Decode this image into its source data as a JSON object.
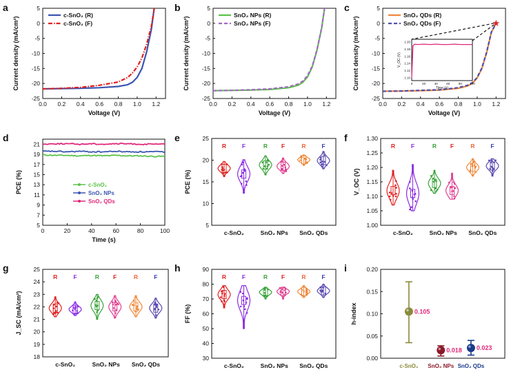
{
  "figure": {
    "panels": [
      {
        "id": "a",
        "letter": "a",
        "kind": "jv",
        "xlabel": "Voltage (V)",
        "ylabel": "Current density (mA/cm²)",
        "xlim": [
          0,
          1.3
        ],
        "ylim": [
          -25,
          5
        ],
        "xticks": [
          "0.0",
          "0.2",
          "0.4",
          "0.6",
          "0.8",
          "1.0",
          "1.2"
        ],
        "yticks": [
          "5",
          "0",
          "-5",
          "-10",
          "-15",
          "-20",
          "-25"
        ],
        "legend": [
          {
            "label": "c-SnO₂ (R)",
            "color": "#3a56b0",
            "dash": "solid"
          },
          {
            "label": "c-SnO₂ (F)",
            "color": "#e02020",
            "dash": "dashdot"
          }
        ]
      },
      {
        "id": "b",
        "letter": "b",
        "kind": "jv",
        "xlabel": "Voltage (V)",
        "ylabel": "Current density (mA/cm²)",
        "xlim": [
          0,
          1.3
        ],
        "ylim": [
          -25,
          5
        ],
        "xticks": [
          "0.0",
          "0.2",
          "0.4",
          "0.6",
          "0.8",
          "1.0",
          "1.2"
        ],
        "yticks": [
          "5",
          "0",
          "-5",
          "-10",
          "-15",
          "-20",
          "-25"
        ],
        "legend": [
          {
            "label": "SnO₂ NPs (R)",
            "color": "#5cc14a",
            "dash": "solid"
          },
          {
            "label": "SnO₂ NPs (F)",
            "color": "#a566c8",
            "dash": "dash"
          }
        ]
      },
      {
        "id": "c",
        "letter": "c",
        "kind": "jv",
        "xlabel": "Voltage (V)",
        "ylabel": "Current density (mA/cm²)",
        "xlim": [
          0,
          1.3
        ],
        "ylim": [
          -25,
          5
        ],
        "xticks": [
          "0.0",
          "0.2",
          "0.4",
          "0.6",
          "0.8",
          "1.0",
          "1.2"
        ],
        "yticks": [
          "5",
          "0",
          "-5",
          "-10",
          "-15",
          "-20",
          "-25"
        ],
        "legend": [
          {
            "label": "SnO₂ QDs (R)",
            "color": "#f0883a",
            "dash": "solid"
          },
          {
            "label": "SnO₂ QDs (F)",
            "color": "#4b4fb0",
            "dash": "dash"
          }
        ],
        "inset": {
          "xlabel": "Time (s)",
          "ylabel": "V_OC (V)",
          "xticks": [
            "0",
            "20",
            "40",
            "60",
            "80",
            "100"
          ],
          "yticks": [
            "1.20",
            "1.18",
            "1.16",
            "1.14",
            "1.12",
            "1.10"
          ],
          "color": "#e0287a"
        }
      },
      {
        "id": "d",
        "letter": "d",
        "kind": "pce_time",
        "xlabel": "Time (s)",
        "ylabel": "PCE (%)",
        "xticks": [
          "0",
          "20",
          "40",
          "60",
          "80",
          "100"
        ],
        "yticks": [
          "21",
          "19",
          "17",
          "15",
          "13",
          "11",
          "9",
          "7",
          "5"
        ],
        "legend": [
          {
            "label": "c-SnO₂",
            "color": "#5cc14a"
          },
          {
            "label": "SnO₂ NPs",
            "color": "#3a56b0"
          },
          {
            "label": "SnO₂ QDs",
            "color": "#e0287a"
          }
        ]
      },
      {
        "id": "e",
        "letter": "e",
        "kind": "violin",
        "ylabel": "PCE (%)",
        "yticks": [
          "25",
          "20",
          "15",
          "10",
          "5"
        ],
        "groups": [
          "c-SnO₂",
          "SnO₂ NPs",
          "SnO₂ QDs"
        ]
      },
      {
        "id": "f",
        "letter": "f",
        "kind": "violin",
        "ylabel": "V_OC (V)",
        "yticks": [
          "1.30",
          "1.25",
          "1.20",
          "1.15",
          "1.10",
          "1.05",
          "1.00"
        ],
        "groups": [
          "c-SnO₂",
          "SnO₂ NPs",
          "SnO₂ QDs"
        ]
      },
      {
        "id": "g",
        "letter": "g",
        "kind": "violin",
        "ylabel": "J_SC (mA/cm²)",
        "yticks": [
          "25",
          "24",
          "23",
          "22",
          "21",
          "20",
          "19",
          "18"
        ],
        "groups": [
          "c-SnO₂",
          "SnO₂ NPs",
          "SnO₂ QDs"
        ]
      },
      {
        "id": "h",
        "letter": "h",
        "kind": "violin",
        "ylabel": "FF (%)",
        "yticks": [
          "90",
          "80",
          "70",
          "60",
          "50",
          "40",
          "30"
        ],
        "groups": [
          "c-SnO₂",
          "SnO₂ NPs",
          "SnO₂ QDs"
        ]
      },
      {
        "id": "i",
        "letter": "i",
        "kind": "hindex",
        "ylabel": "h-index",
        "yticks": [
          "0.20",
          "0.15",
          "0.10",
          "0.05",
          "0.00"
        ],
        "categories": [
          {
            "label": "c-SnO₂",
            "color": "#8a8a3a"
          },
          {
            "label": "SnO₂ NPs",
            "color": "#8a1a2a"
          },
          {
            "label": "SnO₂ QDs",
            "color": "#1a3a8a"
          }
        ],
        "value_labels": [
          "0.105",
          "0.018",
          "0.023"
        ]
      }
    ],
    "rf_letters": [
      "R",
      "F"
    ],
    "rf_colors": [
      {
        "R": "#e02020",
        "F": "#8a2be2"
      },
      {
        "R": "#3aa33a",
        "F": "#e02020"
      },
      {
        "R": "#f0663a",
        "F": "#3a3ab0"
      }
    ],
    "violin_colors": [
      {
        "R": "#e02020",
        "F": "#8a2be2"
      },
      {
        "R": "#3aa33a",
        "F": "#e04090"
      },
      {
        "R": "#f0883a",
        "F": "#5a4ab0"
      }
    ]
  },
  "chart_data": [
    {
      "type": "line",
      "panel": "a",
      "xlabel": "Voltage (V)",
      "ylabel": "Current density (mA/cm²)",
      "xlim": [
        0,
        1.3
      ],
      "ylim": [
        -25,
        5
      ],
      "series": [
        {
          "name": "c-SnO₂ (R)",
          "x": [
            0,
            0.2,
            0.4,
            0.6,
            0.8,
            0.9,
            0.95,
            1.0,
            1.05,
            1.1,
            1.15,
            1.18
          ],
          "y": [
            -21.8,
            -21.7,
            -21.6,
            -21.4,
            -21,
            -20.4,
            -19.6,
            -18,
            -15,
            -9.5,
            -2,
            5
          ]
        },
        {
          "name": "c-SnO₂ (F)",
          "x": [
            0,
            0.2,
            0.4,
            0.6,
            0.8,
            0.9,
            0.95,
            1.0,
            1.05,
            1.1,
            1.15,
            1.18
          ],
          "y": [
            -21.8,
            -21.6,
            -21.3,
            -20.6,
            -19.5,
            -18,
            -16.5,
            -14.5,
            -11.5,
            -7,
            -1,
            5
          ]
        }
      ]
    },
    {
      "type": "line",
      "panel": "b",
      "xlabel": "Voltage (V)",
      "ylabel": "Current density (mA/cm²)",
      "xlim": [
        0,
        1.3
      ],
      "ylim": [
        -25,
        5
      ],
      "series": [
        {
          "name": "SnO₂ NPs (R)",
          "x": [
            0,
            0.2,
            0.4,
            0.6,
            0.8,
            0.9,
            0.95,
            1.0,
            1.05,
            1.1,
            1.15,
            1.18
          ],
          "y": [
            -22.4,
            -22.3,
            -22.2,
            -22,
            -21.4,
            -20.6,
            -19.6,
            -17.8,
            -14.5,
            -9,
            -1.5,
            5
          ]
        },
        {
          "name": "SnO₂ NPs (F)",
          "x": [
            0,
            0.2,
            0.4,
            0.6,
            0.8,
            0.9,
            0.95,
            1.0,
            1.05,
            1.1,
            1.15,
            1.18
          ],
          "y": [
            -22.4,
            -22.3,
            -22.1,
            -21.8,
            -21.1,
            -20.2,
            -19.2,
            -17.4,
            -14.2,
            -8.8,
            -1.4,
            5
          ]
        }
      ]
    },
    {
      "type": "line",
      "panel": "c",
      "xlabel": "Voltage (V)",
      "ylabel": "Current density (mA/cm²)",
      "xlim": [
        0,
        1.3
      ],
      "ylim": [
        -25,
        5
      ],
      "series": [
        {
          "name": "SnO₂ QDs (R)",
          "x": [
            0,
            0.2,
            0.4,
            0.6,
            0.8,
            0.9,
            0.95,
            1.0,
            1.05,
            1.1,
            1.15,
            1.2
          ],
          "y": [
            -22.6,
            -22.5,
            -22.4,
            -22.2,
            -21.6,
            -20.8,
            -19.9,
            -18.2,
            -15,
            -9.8,
            -3,
            0
          ]
        },
        {
          "name": "SnO₂ QDs (F)",
          "x": [
            0,
            0.2,
            0.4,
            0.6,
            0.8,
            0.9,
            0.95,
            1.0,
            1.05,
            1.1,
            1.15,
            1.2
          ],
          "y": [
            -22.6,
            -22.5,
            -22.3,
            -22.1,
            -21.4,
            -20.6,
            -19.7,
            -18,
            -14.8,
            -9.6,
            -2.9,
            0
          ]
        }
      ]
    },
    {
      "type": "line",
      "panel": "c-inset",
      "xlabel": "Time (s)",
      "ylabel": "V_OC (V)",
      "xlim": [
        0,
        100
      ],
      "ylim": [
        1.1,
        1.2
      ],
      "series": [
        {
          "name": "",
          "x": [
            0,
            2,
            5,
            10,
            20,
            30,
            40,
            50,
            60,
            70,
            80,
            90,
            100
          ],
          "y": [
            1.1,
            1.19,
            1.194,
            1.193,
            1.194,
            1.193,
            1.194,
            1.193,
            1.193,
            1.194,
            1.193,
            1.193,
            1.193
          ]
        }
      ]
    },
    {
      "type": "line",
      "panel": "d",
      "xlabel": "Time (s)",
      "ylabel": "PCE (%)",
      "xlim": [
        0,
        100
      ],
      "ylim": [
        5,
        22
      ],
      "series": [
        {
          "name": "c-SnO₂",
          "x": [
            0,
            10,
            20,
            30,
            40,
            50,
            60,
            70,
            80,
            90,
            100
          ],
          "y": [
            18.9,
            18.8,
            18.8,
            18.7,
            18.8,
            18.7,
            18.8,
            18.7,
            18.7,
            18.6,
            18.6
          ]
        },
        {
          "name": "SnO₂ NPs",
          "x": [
            0,
            10,
            20,
            30,
            40,
            50,
            60,
            70,
            80,
            90,
            100
          ],
          "y": [
            19.6,
            19.6,
            19.5,
            19.6,
            19.5,
            19.5,
            19.6,
            19.5,
            19.5,
            19.5,
            19.5
          ]
        },
        {
          "name": "SnO₂ QDs",
          "x": [
            0,
            10,
            20,
            30,
            40,
            50,
            60,
            70,
            80,
            90,
            100
          ],
          "y": [
            21.0,
            21.1,
            21.1,
            21.0,
            21.1,
            21.0,
            21.1,
            21.1,
            21.0,
            21.0,
            21.0
          ]
        }
      ]
    },
    {
      "type": "violin",
      "panel": "e",
      "ylabel": "PCE (%)",
      "ylim": [
        5,
        25
      ],
      "categories": [
        "c-SnO₂ R",
        "c-SnO₂ F",
        "SnO₂ NPs R",
        "SnO₂ NPs F",
        "SnO₂ QDs R",
        "SnO₂ QDs F"
      ],
      "medians": [
        18.1,
        16.8,
        18.9,
        18.6,
        20.1,
        19.9
      ],
      "ranges": [
        [
          16.2,
          19.7
        ],
        [
          12.4,
          20.1
        ],
        [
          16.6,
          21.0
        ],
        [
          16.9,
          20.5
        ],
        [
          18.8,
          21.2
        ],
        [
          18.0,
          22.0
        ]
      ]
    },
    {
      "type": "violin",
      "panel": "f",
      "ylabel": "V_OC (V)",
      "ylim": [
        1.0,
        1.3
      ],
      "categories": [
        "c-SnO₂ R",
        "c-SnO₂ F",
        "SnO₂ NPs R",
        "SnO₂ NPs F",
        "SnO₂ QDs R",
        "SnO₂ QDs F"
      ],
      "medians": [
        1.12,
        1.11,
        1.145,
        1.12,
        1.2,
        1.205
      ],
      "ranges": [
        [
          1.07,
          1.19
        ],
        [
          1.05,
          1.21
        ],
        [
          1.11,
          1.19
        ],
        [
          1.09,
          1.18
        ],
        [
          1.17,
          1.23
        ],
        [
          1.17,
          1.23
        ]
      ]
    },
    {
      "type": "violin",
      "panel": "g",
      "ylabel": "J_SC (mA/cm²)",
      "ylim": [
        18,
        25
      ],
      "categories": [
        "c-SnO₂ R",
        "c-SnO₂ F",
        "SnO₂ NPs R",
        "SnO₂ NPs F",
        "SnO₂ QDs R",
        "SnO₂ QDs F"
      ],
      "medians": [
        21.9,
        21.8,
        22.1,
        22.0,
        22.0,
        21.9
      ],
      "ranges": [
        [
          21.2,
          22.8
        ],
        [
          21.3,
          22.4
        ],
        [
          21.0,
          23.0
        ],
        [
          21.1,
          22.9
        ],
        [
          21.2,
          22.9
        ],
        [
          21.1,
          22.7
        ]
      ]
    },
    {
      "type": "violin",
      "panel": "h",
      "ylabel": "FF (%)",
      "ylim": [
        30,
        90
      ],
      "categories": [
        "c-SnO₂ R",
        "c-SnO₂ F",
        "SnO₂ NPs R",
        "SnO₂ NPs F",
        "SnO₂ QDs R",
        "SnO₂ QDs F"
      ],
      "medians": [
        73,
        69,
        74.5,
        75,
        75,
        75.5
      ],
      "ranges": [
        [
          64,
          79
        ],
        [
          50,
          79
        ],
        [
          70,
          78
        ],
        [
          70,
          78
        ],
        [
          71,
          79
        ],
        [
          71,
          80
        ]
      ]
    },
    {
      "type": "scatter",
      "panel": "i",
      "ylabel": "h-index",
      "ylim": [
        0,
        0.2
      ],
      "categories": [
        "c-SnO₂",
        "SnO₂ NPs",
        "SnO₂ QDs"
      ],
      "values": [
        0.105,
        0.018,
        0.023
      ],
      "error": [
        [
          0.035,
          0.172
        ],
        [
          0.005,
          0.028
        ],
        [
          0.007,
          0.04
        ]
      ]
    }
  ]
}
